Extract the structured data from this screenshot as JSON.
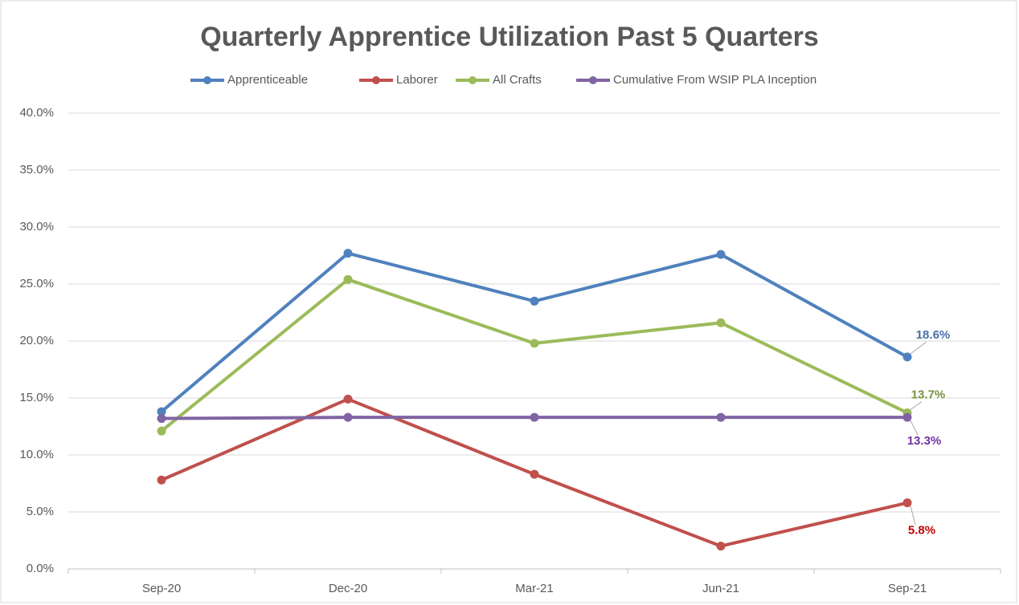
{
  "chart_data": {
    "type": "line",
    "title": "Quarterly Apprentice Utilization Past 5 Quarters",
    "categories": [
      "Sep-20",
      "Dec-20",
      "Mar-21",
      "Jun-21",
      "Sep-21"
    ],
    "series": [
      {
        "name": "Apprenticeable",
        "color": "#4f81bd",
        "label_color": "#4a6fa5",
        "values": [
          13.8,
          27.7,
          23.5,
          27.6,
          18.6
        ],
        "value_labels": [
          null,
          null,
          null,
          null,
          "18.6%"
        ]
      },
      {
        "name": "Laborer",
        "color": "#c0504d",
        "label_color": "#c00000",
        "values": [
          7.8,
          14.9,
          8.3,
          2.0,
          5.8
        ],
        "value_labels": [
          null,
          null,
          null,
          null,
          "5.8%"
        ]
      },
      {
        "name": "All Crafts",
        "color": "#9bbb59",
        "label_color": "#77933c",
        "values": [
          12.1,
          25.4,
          19.8,
          21.6,
          13.7
        ],
        "value_labels": [
          null,
          null,
          null,
          null,
          "13.7%"
        ]
      },
      {
        "name": "Cumulative From WSIP PLA Inception",
        "color": "#8064a2",
        "label_color": "#7030a0",
        "values": [
          13.2,
          13.3,
          13.3,
          13.3,
          13.3
        ],
        "value_labels": [
          null,
          null,
          null,
          null,
          "13.3%"
        ]
      }
    ],
    "ylim": [
      0,
      40
    ],
    "yticks": [
      {
        "value": 0,
        "label": "0.0%"
      },
      {
        "value": 5,
        "label": "5.0%"
      },
      {
        "value": 10,
        "label": "10.0%"
      },
      {
        "value": 15,
        "label": "15.0%"
      },
      {
        "value": 20,
        "label": "20.0%"
      },
      {
        "value": 25,
        "label": "25.0%"
      },
      {
        "value": 30,
        "label": "30.0%"
      },
      {
        "value": 35,
        "label": "35.0%"
      },
      {
        "value": 40,
        "label": "40.0%"
      }
    ],
    "grid": true,
    "legend": "top"
  }
}
